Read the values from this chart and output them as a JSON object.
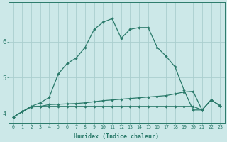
{
  "xlabel": "Humidex (Indice chaleur)",
  "x_values": [
    0,
    1,
    2,
    3,
    4,
    5,
    6,
    7,
    8,
    9,
    10,
    11,
    12,
    13,
    14,
    15,
    16,
    17,
    18,
    19,
    20,
    21,
    22,
    23
  ],
  "line_top_y": [
    3.9,
    4.05,
    4.2,
    4.3,
    4.45,
    5.1,
    5.4,
    5.55,
    5.85,
    6.35,
    6.55,
    6.65,
    6.1,
    6.35,
    6.4,
    6.4,
    5.85,
    5.6,
    5.3,
    4.65,
    4.1,
    4.1,
    4.38,
    4.22
  ],
  "line_mid_y": [
    3.9,
    4.05,
    4.2,
    4.2,
    4.25,
    4.26,
    4.27,
    4.28,
    4.3,
    4.33,
    4.36,
    4.38,
    4.4,
    4.42,
    4.44,
    4.46,
    4.48,
    4.5,
    4.55,
    4.6,
    4.62,
    4.1,
    4.38,
    4.22
  ],
  "line_bot_y": [
    3.9,
    4.05,
    4.18,
    4.2,
    4.2,
    4.2,
    4.2,
    4.2,
    4.2,
    4.2,
    4.2,
    4.2,
    4.2,
    4.2,
    4.2,
    4.2,
    4.2,
    4.2,
    4.2,
    4.2,
    4.2,
    4.1,
    4.38,
    4.22
  ],
  "line_color": "#2a7a6a",
  "bg_color": "#cce8e8",
  "grid_color": "#aacece",
  "axis_color": "#2a7a6a",
  "ylim": [
    3.75,
    7.1
  ],
  "yticks": [
    4,
    5,
    6
  ],
  "xlim": [
    -0.5,
    23.5
  ]
}
